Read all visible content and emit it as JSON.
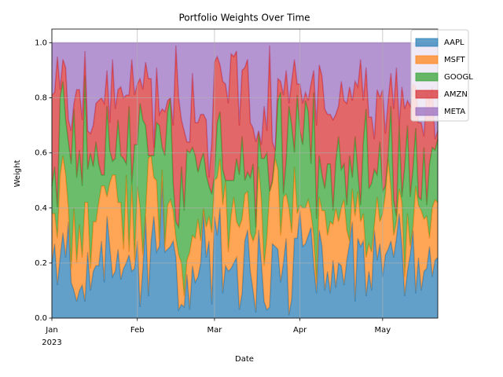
{
  "chart_data": {
    "type": "stacked_area",
    "title": "Portfolio Weights Over Time",
    "xlabel": "Date",
    "ylabel": "Weight",
    "x": [
      "2023-01-01",
      "2023-01-02",
      "2023-01-03",
      "2023-01-04",
      "2023-01-05",
      "2023-01-06",
      "2023-01-07",
      "2023-01-08",
      "2023-01-09",
      "2023-01-10",
      "2023-01-11",
      "2023-01-12",
      "2023-01-13",
      "2023-01-14",
      "2023-01-15",
      "2023-01-16",
      "2023-01-17",
      "2023-01-18",
      "2023-01-19",
      "2023-01-20",
      "2023-01-21",
      "2023-01-22",
      "2023-01-23",
      "2023-01-24",
      "2023-01-25",
      "2023-01-26",
      "2023-01-27",
      "2023-01-28",
      "2023-01-29",
      "2023-01-30",
      "2023-01-31",
      "2023-02-01",
      "2023-02-02",
      "2023-02-03",
      "2023-02-04",
      "2023-02-05",
      "2023-02-06",
      "2023-02-07",
      "2023-02-08",
      "2023-02-09",
      "2023-02-10",
      "2023-02-11",
      "2023-02-12",
      "2023-02-13",
      "2023-02-14",
      "2023-02-15",
      "2023-02-16",
      "2023-02-17",
      "2023-02-18",
      "2023-02-19",
      "2023-02-20",
      "2023-02-21",
      "2023-02-22",
      "2023-02-23",
      "2023-02-24",
      "2023-02-25",
      "2023-02-26",
      "2023-02-27",
      "2023-02-28",
      "2023-03-01",
      "2023-03-02",
      "2023-03-03",
      "2023-03-04",
      "2023-03-05",
      "2023-03-06",
      "2023-03-07",
      "2023-03-08",
      "2023-03-09",
      "2023-03-10",
      "2023-03-11",
      "2023-03-12",
      "2023-03-13",
      "2023-03-14",
      "2023-03-15",
      "2023-03-16",
      "2023-03-17",
      "2023-03-18",
      "2023-03-19",
      "2023-03-20",
      "2023-03-21",
      "2023-03-22",
      "2023-03-23",
      "2023-03-24",
      "2023-03-25",
      "2023-03-26",
      "2023-03-27",
      "2023-03-28",
      "2023-03-29",
      "2023-03-30",
      "2023-03-31",
      "2023-04-01",
      "2023-04-02",
      "2023-04-03",
      "2023-04-04",
      "2023-04-05",
      "2023-04-06",
      "2023-04-07",
      "2023-04-08",
      "2023-04-09",
      "2023-04-10",
      "2023-04-11",
      "2023-04-12",
      "2023-04-13",
      "2023-04-14",
      "2023-04-15",
      "2023-04-16",
      "2023-04-17",
      "2023-04-18",
      "2023-04-19",
      "2023-04-20",
      "2023-04-21",
      "2023-04-22",
      "2023-04-23",
      "2023-04-24",
      "2023-04-25",
      "2023-04-26",
      "2023-04-27",
      "2023-04-28",
      "2023-04-29",
      "2023-04-30",
      "2023-05-01",
      "2023-05-02",
      "2023-05-03",
      "2023-05-04",
      "2023-05-05",
      "2023-05-06",
      "2023-05-07",
      "2023-05-08",
      "2023-05-09",
      "2023-05-10",
      "2023-05-11",
      "2023-05-12",
      "2023-05-13",
      "2023-05-14",
      "2023-05-15",
      "2023-05-16",
      "2023-05-17",
      "2023-05-18",
      "2023-05-19",
      "2023-05-20",
      "2023-05-21"
    ],
    "series": [
      {
        "name": "AAPL",
        "color": "#1f77b4",
        "values": [
          0.2,
          0.27,
          0.12,
          0.22,
          0.31,
          0.22,
          0.35,
          0.13,
          0.1,
          0.06,
          0.1,
          0.12,
          0.06,
          0.24,
          0.1,
          0.17,
          0.19,
          0.19,
          0.28,
          0.13,
          0.37,
          0.26,
          0.15,
          0.17,
          0.25,
          0.14,
          0.18,
          0.2,
          0.23,
          0.17,
          0.18,
          0.28,
          0.04,
          0.18,
          0.37,
          0.08,
          0.28,
          0.37,
          0.24,
          0.26,
          0.5,
          0.24,
          0.25,
          0.26,
          0.28,
          0.22,
          0.03,
          0.05,
          0.04,
          0.16,
          0.03,
          0.19,
          0.13,
          0.15,
          0.2,
          0.39,
          0.22,
          0.28,
          0.05,
          0.37,
          0.3,
          0.4,
          0.09,
          0.19,
          0.17,
          0.18,
          0.2,
          0.22,
          0.03,
          0.09,
          0.28,
          0.32,
          0.17,
          0.1,
          0.02,
          0.32,
          0.2,
          0.06,
          0.03,
          0.04,
          0.27,
          0.26,
          0.25,
          0.13,
          0.2,
          0.29,
          0.01,
          0.07,
          0.29,
          0.29,
          0.39,
          0.26,
          0.27,
          0.3,
          0.33,
          0.19,
          0.09,
          0.32,
          0.26,
          0.1,
          0.17,
          0.09,
          0.21,
          0.11,
          0.2,
          0.19,
          0.12,
          0.21,
          0.27,
          0.35,
          0.06,
          0.29,
          0.26,
          0.28,
          0.08,
          0.17,
          0.1,
          0.32,
          0.21,
          0.27,
          0.15,
          0.23,
          0.25,
          0.28,
          0.22,
          0.29,
          0.38,
          0.26,
          0.08,
          0.17,
          0.23,
          0.32,
          0.09,
          0.22,
          0.1,
          0.17,
          0.18,
          0.26,
          0.15,
          0.21,
          0.22
        ]
      },
      {
        "name": "MSFT",
        "color": "#ff7f0e",
        "values": [
          0.18,
          0.11,
          0.17,
          0.3,
          0.28,
          0.3,
          0.05,
          0.05,
          0.3,
          0.14,
          0.24,
          0.1,
          0.36,
          0.18,
          0.08,
          0.18,
          0.16,
          0.23,
          0.2,
          0.35,
          0.07,
          0.23,
          0.37,
          0.35,
          0.17,
          0.28,
          0.07,
          0.32,
          0.01,
          0.32,
          0.03,
          0.2,
          0.36,
          0.05,
          0.01,
          0.5,
          0.31,
          0.14,
          0.26,
          0.02,
          0.04,
          0.02,
          0.16,
          0.17,
          0.11,
          0.07,
          0.2,
          0.15,
          0.04,
          0.05,
          0.21,
          0.11,
          0.16,
          0.21,
          0.08,
          0.01,
          0.11,
          0.09,
          0.26,
          0.13,
          0.21,
          0.18,
          0.32,
          0.31,
          0.07,
          0.19,
          0.24,
          0.13,
          0.3,
          0.27,
          0.17,
          0.14,
          0.14,
          0.18,
          0.29,
          0.23,
          0.23,
          0.13,
          0.26,
          0.42,
          0.22,
          0.32,
          0.29,
          0.17,
          0.24,
          0.16,
          0.39,
          0.24,
          0.26,
          0.09,
          0.02,
          0.14,
          0.13,
          0.13,
          0.05,
          0.11,
          0.04,
          0.12,
          0.13,
          0.29,
          0.13,
          0.26,
          0.13,
          0.29,
          0.15,
          0.21,
          0.31,
          0.11,
          0.01,
          0.12,
          0.31,
          0.17,
          0.09,
          0.1,
          0.14,
          0.1,
          0.14,
          0.02,
          0.23,
          0.08,
          0.23,
          0.22,
          0.33,
          0.19,
          0.08,
          0.06,
          0.09,
          0.16,
          0.07,
          0.21,
          0.03,
          0.01,
          0.39,
          0.19,
          0.29,
          0.19,
          0.19,
          0.03,
          0.25,
          0.22,
          0.2
        ]
      },
      {
        "name": "GOOGL",
        "color": "#2ca02c",
        "values": [
          0.1,
          0.17,
          0.11,
          0.28,
          0.27,
          0.2,
          0.24,
          0.38,
          0.36,
          0.31,
          0.27,
          0.26,
          0.46,
          0.12,
          0.42,
          0.2,
          0.29,
          0.14,
          0.04,
          0.04,
          0.33,
          0.12,
          0.05,
          0.06,
          0.3,
          0.17,
          0.33,
          0.04,
          0.53,
          0.0,
          0.42,
          0.15,
          0.38,
          0.49,
          0.32,
          0.01,
          0.0,
          0.08,
          0.21,
          0.42,
          0.08,
          0.33,
          0.34,
          0.37,
          0.1,
          0.06,
          0.1,
          0.35,
          0.31,
          0.4,
          0.36,
          0.32,
          0.3,
          0.17,
          0.29,
          0.2,
          0.19,
          0.11,
          0.14,
          0.02,
          0.2,
          0.17,
          0.13,
          0.0,
          0.26,
          0.13,
          0.06,
          0.23,
          0.19,
          0.3,
          0.05,
          0.07,
          0.2,
          0.28,
          0.02,
          0.13,
          0.15,
          0.39,
          0.31,
          0.0,
          0.01,
          0.02,
          0.25,
          0.52,
          0.01,
          0.12,
          0.37,
          0.39,
          0.05,
          0.43,
          0.27,
          0.23,
          0.39,
          0.32,
          0.18,
          0.52,
          0.23,
          0.15,
          0.13,
          0.08,
          0.26,
          0.21,
          0.05,
          0.17,
          0.31,
          0.14,
          0.13,
          0.09,
          0.31,
          0.04,
          0.29,
          0.07,
          0.06,
          0.26,
          0.54,
          0.2,
          0.25,
          0.2,
          0.08,
          0.29,
          0.08,
          0.03,
          0.01,
          0.3,
          0.13,
          0.02,
          0.23,
          0.02,
          0.4,
          0.32,
          0.18,
          0.21,
          0.21,
          0.03,
          0.04,
          0.26,
          0.04,
          0.27,
          0.22,
          0.18,
          0.23
        ]
      },
      {
        "name": "AMZN",
        "color": "#d62728",
        "values": [
          0.33,
          0.27,
          0.55,
          0.03,
          0.08,
          0.19,
          0.08,
          0.12,
          0.02,
          0.32,
          0.22,
          0.24,
          0.09,
          0.14,
          0.07,
          0.15,
          0.14,
          0.23,
          0.28,
          0.26,
          0.13,
          0.1,
          0.37,
          0.18,
          0.11,
          0.25,
          0.22,
          0.25,
          0.04,
          0.45,
          0.18,
          0.22,
          0.09,
          0.11,
          0.23,
          0.28,
          0.28,
          0.03,
          0.2,
          0.04,
          0.14,
          0.16,
          0.04,
          0.0,
          0.21,
          0.64,
          0.47,
          0.17,
          0.29,
          0.03,
          0.04,
          0.27,
          0.12,
          0.18,
          0.17,
          0.14,
          0.2,
          0.03,
          0.19,
          0.41,
          0.24,
          0.17,
          0.32,
          0.35,
          0.28,
          0.46,
          0.45,
          0.39,
          0.18,
          0.24,
          0.41,
          0.41,
          0.2,
          0.13,
          0.31,
          0.0,
          0.05,
          0.19,
          0.08,
          0.53,
          0.14,
          0.01,
          0.08,
          0.04,
          0.36,
          0.33,
          0.01,
          0.16,
          0.34,
          0.04,
          0.17,
          0.15,
          0.03,
          0.04,
          0.29,
          0.08,
          0.34,
          0.33,
          0.36,
          0.29,
          0.18,
          0.18,
          0.33,
          0.17,
          0.11,
          0.32,
          0.23,
          0.37,
          0.25,
          0.28,
          0.2,
          0.31,
          0.53,
          0.15,
          0.15,
          0.26,
          0.24,
          0.11,
          0.31,
          0.16,
          0.37,
          0.19,
          0.2,
          0.12,
          0.33,
          0.54,
          0.0,
          0.4,
          0.21,
          0.09,
          0.33,
          0.31,
          0.15,
          0.27,
          0.28,
          0.04,
          0.41,
          0.23,
          0.22,
          0.04,
          0.03
        ]
      },
      {
        "name": "META",
        "color": "#9467bd",
        "values": [
          0.19,
          0.18,
          0.05,
          0.17,
          0.06,
          0.09,
          0.28,
          0.32,
          0.22,
          0.17,
          0.17,
          0.28,
          0.03,
          0.32,
          0.33,
          0.3,
          0.22,
          0.21,
          0.2,
          0.22,
          0.1,
          0.29,
          0.06,
          0.24,
          0.17,
          0.16,
          0.2,
          0.19,
          0.19,
          0.06,
          0.19,
          0.15,
          0.13,
          0.17,
          0.07,
          0.13,
          0.13,
          0.38,
          0.09,
          0.26,
          0.24,
          0.25,
          0.21,
          0.2,
          0.3,
          0.01,
          0.2,
          0.28,
          0.32,
          0.36,
          0.36,
          0.11,
          0.29,
          0.29,
          0.26,
          0.26,
          0.28,
          0.49,
          0.36,
          0.07,
          0.05,
          0.08,
          0.14,
          0.15,
          0.22,
          0.04,
          0.05,
          0.03,
          0.3,
          0.1,
          0.09,
          0.06,
          0.29,
          0.31,
          0.36,
          0.32,
          0.37,
          0.23,
          0.32,
          0.01,
          0.36,
          0.39,
          0.13,
          0.14,
          0.19,
          0.1,
          0.22,
          0.14,
          0.06,
          0.15,
          0.15,
          0.22,
          0.18,
          0.21,
          0.15,
          0.1,
          0.3,
          0.08,
          0.12,
          0.24,
          0.26,
          0.26,
          0.28,
          0.26,
          0.23,
          0.14,
          0.21,
          0.22,
          0.16,
          0.21,
          0.14,
          0.16,
          0.06,
          0.21,
          0.09,
          0.27,
          0.27,
          0.35,
          0.17,
          0.2,
          0.17,
          0.33,
          0.21,
          0.11,
          0.24,
          0.09,
          0.3,
          0.16,
          0.24,
          0.21,
          0.23,
          0.15,
          0.16,
          0.29,
          0.29,
          0.34,
          0.18,
          0.21,
          0.16,
          0.35,
          0.32
        ]
      }
    ],
    "xlim": [
      "2023-01-01",
      "2023-05-21"
    ],
    "xticks": [
      {
        "value": "2023-01-01",
        "label": "Jan\n2023"
      },
      {
        "value": "2023-02-01",
        "label": "Feb"
      },
      {
        "value": "2023-03-01",
        "label": "Mar"
      },
      {
        "value": "2023-04-01",
        "label": "Apr"
      },
      {
        "value": "2023-05-01",
        "label": "May"
      }
    ],
    "ylim": [
      0,
      1.05
    ],
    "yticks": [
      {
        "value": 0,
        "label": "0.0"
      },
      {
        "value": 0.2,
        "label": "0.2"
      },
      {
        "value": 0.4,
        "label": "0.4"
      },
      {
        "value": 0.6,
        "label": "0.6"
      },
      {
        "value": 0.8,
        "label": "0.8"
      },
      {
        "value": 1,
        "label": "1.0"
      }
    ],
    "grid": true,
    "legend": "upper right",
    "alpha": 0.7
  }
}
